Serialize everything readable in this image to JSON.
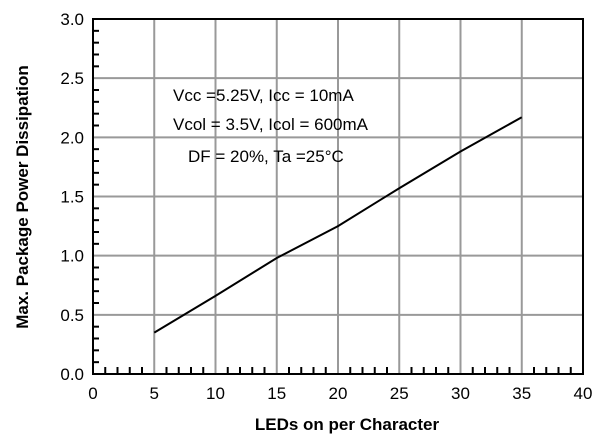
{
  "chart_data": {
    "type": "line",
    "xlabel": "LEDs on per  Character",
    "ylabel": "Max. Package Power Dissipation",
    "xlim": [
      0,
      40
    ],
    "ylim": [
      0,
      3.0
    ],
    "x_ticks": [
      "0",
      "5",
      "10",
      "15",
      "20",
      "25",
      "30",
      "35",
      "40"
    ],
    "y_ticks": [
      "0.0",
      "0.5",
      "1.0",
      "1.5",
      "2.0",
      "2.5",
      "3.0"
    ],
    "grid": true,
    "series": [
      {
        "x": [
          5,
          10,
          15,
          20,
          25,
          30,
          35
        ],
        "y": [
          0.35,
          0.66,
          0.98,
          1.25,
          1.57,
          1.88,
          2.17
        ]
      }
    ],
    "annotations": [
      "Vcc =5.25V, Icc = 10mA",
      "Vcol = 3.5V, Icol = 600mA",
      "DF = 20%, Ta =25°C"
    ],
    "colors": {
      "line": "#000000",
      "grid": "#999999",
      "axes": "#000000"
    }
  }
}
